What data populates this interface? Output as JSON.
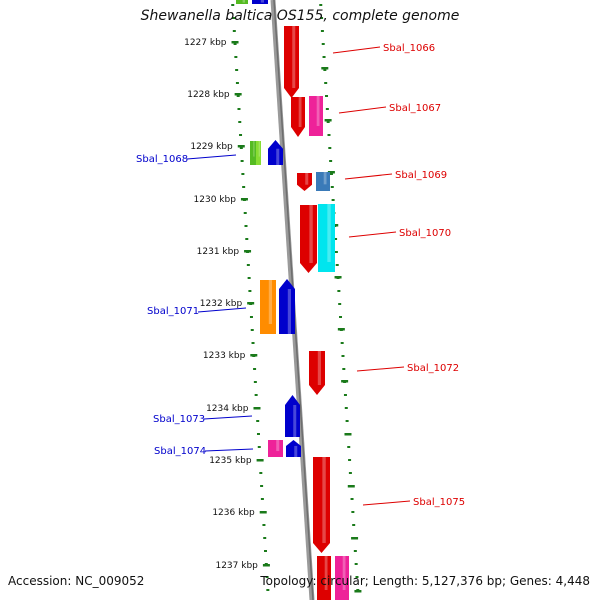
{
  "title": "Shewanella baltica OS155, complete genome",
  "footer": {
    "accession": "Accession: NC_009052",
    "topology": "Topology: circular; Length: 5,127,376 bp; Genes: 4,448"
  },
  "kbp_labels": [
    "1227 kbp",
    "1228 kbp",
    "1229 kbp",
    "1230 kbp",
    "1231 kbp",
    "1232 kbp",
    "1233 kbp",
    "1234 kbp",
    "1235 kbp",
    "1236 kbp",
    "1237 kbp"
  ],
  "genes": [
    {
      "name": "Sbal_1066",
      "strand": "plus",
      "color": "#dd0000"
    },
    {
      "name": "Sbal_1067",
      "strand": "plus",
      "color": "#dd0000"
    },
    {
      "name": "Sbal_1068",
      "strand": "minus",
      "color": "#0000cc"
    },
    {
      "name": "Sbal_1069",
      "strand": "plus",
      "color": "#dd0000"
    },
    {
      "name": "Sbal_1070",
      "strand": "plus",
      "color": "#dd0000"
    },
    {
      "name": "Sbal_1071",
      "strand": "minus",
      "color": "#0000cc"
    },
    {
      "name": "Sbal_1072",
      "strand": "plus",
      "color": "#dd0000"
    },
    {
      "name": "Sbal_1073",
      "strand": "minus",
      "color": "#0000cc"
    },
    {
      "name": "Sbal_1074",
      "strand": "minus",
      "color": "#0000cc"
    },
    {
      "name": "Sbal_1075",
      "strand": "plus",
      "color": "#dd0000"
    }
  ],
  "colors": {
    "backbone": "#888888",
    "tick": "#1a7a1a",
    "plus_strand": "#dd0000",
    "minus_strand": "#0000cc",
    "magenta": "#ee2299",
    "cyan": "#00e5ee",
    "steelblue": "#3a7ab8",
    "orange": "#ff8c00",
    "green": "#55bb22"
  }
}
